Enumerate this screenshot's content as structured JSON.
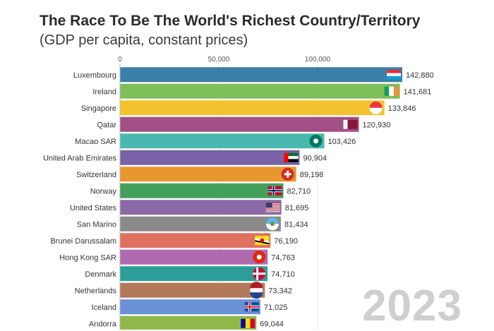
{
  "title": "The Race To Be The World's Richest Country/Territory",
  "subtitle": "(GDP per capita, constant prices)",
  "year": "2023",
  "chart_data": {
    "type": "bar",
    "orientation": "horizontal",
    "title": "The Race To Be The World's Richest Country/Territory",
    "subtitle": "(GDP per capita, constant prices)",
    "xlabel": "",
    "ylabel": "",
    "xlim": [
      0,
      142880
    ],
    "xticks": [
      0,
      50000,
      100000
    ],
    "xtick_labels": [
      "0",
      "50,000",
      "100,000"
    ],
    "grid": true,
    "categories": [
      "Luxembourg",
      "Ireland",
      "Singapore",
      "Qatar",
      "Macao SAR",
      "United Arab Emirates",
      "Switzerland",
      "Norway",
      "United States",
      "San Marino",
      "Brunei Darussalam",
      "Hong Kong SAR",
      "Denmark",
      "Netherlands",
      "Iceland",
      "Andorra"
    ],
    "values": [
      142880,
      141681,
      133846,
      120930,
      103426,
      90904,
      89198,
      82710,
      81695,
      81434,
      76190,
      74763,
      74710,
      73342,
      71025,
      69044
    ],
    "value_labels": [
      "142,880",
      "141,681",
      "133,846",
      "120,930",
      "103,426",
      "90,904",
      "89,198",
      "82,710",
      "81,695",
      "81,434",
      "76,190",
      "74,763",
      "74,710",
      "73,342",
      "71,025",
      "69,044"
    ],
    "colors": [
      "#3b7fa6",
      "#7fbf5a",
      "#f2c12e",
      "#a24f86",
      "#4bb8b0",
      "#7a62a6",
      "#e8962f",
      "#43a05a",
      "#8a6aa6",
      "#8a8a8a",
      "#e07060",
      "#b06ab0",
      "#2c9e98",
      "#b27a5a",
      "#6a90d6",
      "#8fb84a"
    ],
    "flags": [
      "flag-luxembourg",
      "flag-ireland",
      "flag-singapore",
      "flag-qatar",
      "flag-macao",
      "flag-uae",
      "flag-switzerland",
      "flag-norway",
      "flag-usa",
      "flag-san-marino",
      "flag-brunei",
      "flag-hong-kong",
      "flag-denmark",
      "flag-netherlands",
      "flag-iceland",
      "flag-andorra"
    ]
  }
}
